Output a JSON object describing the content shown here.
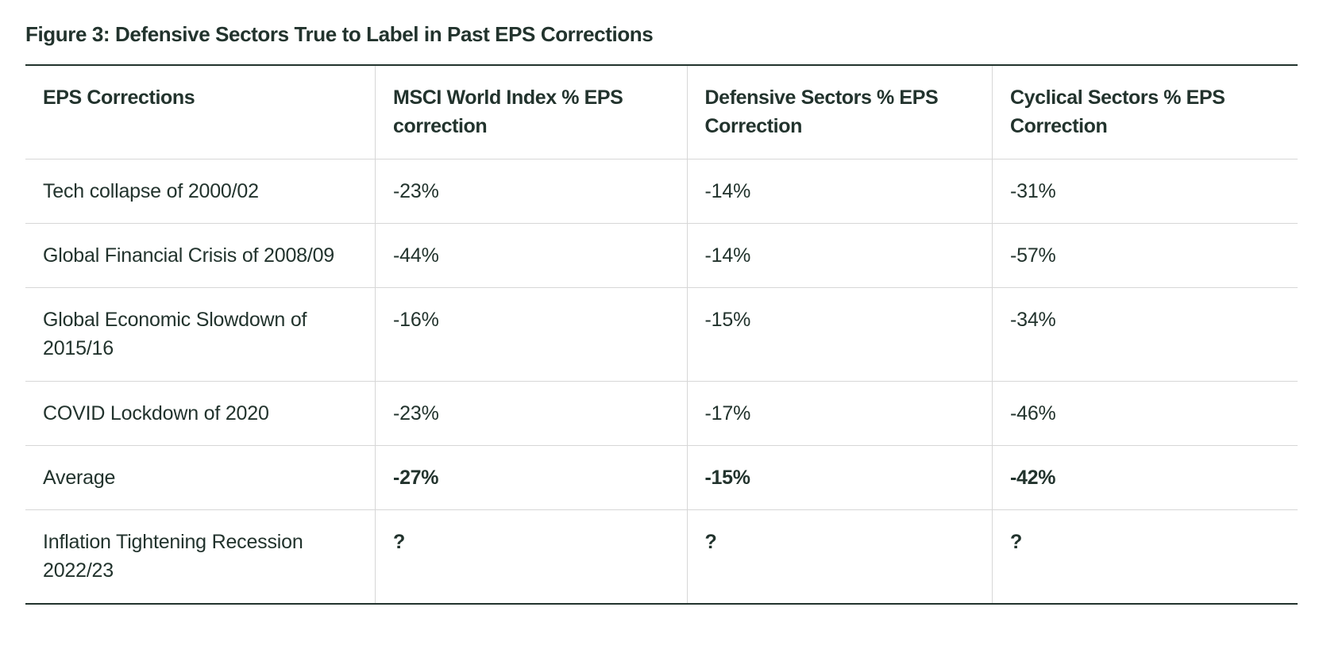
{
  "figure": {
    "title": "Figure 3: Defensive Sectors True to Label in Past EPS Corrections",
    "title_fontsize": 26,
    "title_fontweight": 700,
    "text_color": "#22332d",
    "background_color": "#ffffff",
    "outer_border_color": "#22332d",
    "row_border_color": "#d7d7d7",
    "cell_fontsize": 25,
    "column_widths_pct": [
      27.5,
      24.5,
      24,
      24
    ]
  },
  "table": {
    "type": "table",
    "columns": [
      "EPS Corrections",
      "MSCI World Index % EPS correction",
      "Defensive Sectors % EPS Correction",
      "Cyclical Sectors % EPS Correction"
    ],
    "rows": [
      {
        "label": "Tech collapse of 2000/02",
        "msci": "-23%",
        "defensive": "-14%",
        "cyclical": "-31%",
        "bold_values": false
      },
      {
        "label": "Global Financial Crisis of 2008/09",
        "msci": "-44%",
        "defensive": "-14%",
        "cyclical": "-57%",
        "bold_values": false
      },
      {
        "label": "Global Economic Slowdown of 2015/16",
        "msci": "-16%",
        "defensive": "-15%",
        "cyclical": "-34%",
        "bold_values": false
      },
      {
        "label": "COVID Lockdown of 2020",
        "msci": "-23%",
        "defensive": "-17%",
        "cyclical": "-46%",
        "bold_values": false
      },
      {
        "label": "Average",
        "msci": "-27%",
        "defensive": "-15%",
        "cyclical": "-42%",
        "bold_values": true
      },
      {
        "label": "Inflation Tightening Recession 2022/23",
        "msci": "?",
        "defensive": "?",
        "cyclical": "?",
        "bold_values": true
      }
    ]
  }
}
